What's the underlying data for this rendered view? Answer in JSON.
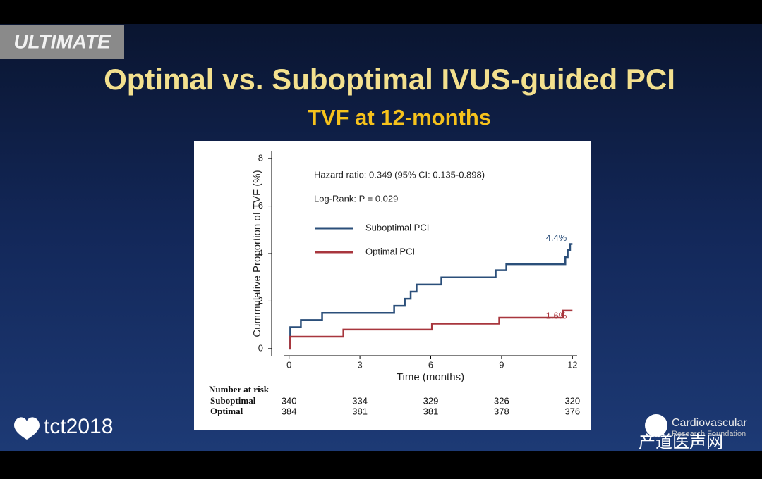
{
  "badge": "ULTIMATE",
  "title": "Optimal vs. Suboptimal IVUS-guided PCI",
  "subtitle": "TVF at 12-months",
  "chart_data": {
    "type": "step",
    "xlabel": "Time (months)",
    "ylabel": "Cummulative Proportion of TVF (%)",
    "xlim": [
      -0.2,
      12.2
    ],
    "ylim": [
      -0.3,
      8.3
    ],
    "xticks": [
      0,
      3,
      6,
      9,
      12
    ],
    "yticks": [
      0,
      2,
      4,
      6,
      8
    ],
    "annotations": [
      "Hazard ratio: 0.349 (95% CI: 0.135-0.898)",
      "Log-Rank: P = 0.029"
    ],
    "series": [
      {
        "name": "Suboptimal PCI",
        "color": "#2b4f7a",
        "end_label": "4.4%",
        "x": [
          0,
          0.05,
          0.05,
          0.5,
          0.5,
          1.4,
          1.4,
          4.45,
          4.45,
          4.9,
          4.9,
          5.15,
          5.15,
          5.4,
          5.4,
          6.45,
          6.45,
          8.75,
          8.75,
          9.2,
          9.2,
          11.7,
          11.7,
          11.8,
          11.8,
          11.9,
          11.9,
          12
        ],
        "values": [
          0,
          0,
          0.9,
          0.9,
          1.2,
          1.2,
          1.5,
          1.5,
          1.8,
          1.8,
          2.1,
          2.1,
          2.4,
          2.4,
          2.7,
          2.7,
          3.0,
          3.0,
          3.3,
          3.3,
          3.55,
          3.55,
          3.85,
          3.85,
          4.15,
          4.15,
          4.4,
          4.4
        ]
      },
      {
        "name": "Optimal PCI",
        "color": "#a8363d",
        "end_label": "1.6%",
        "x": [
          0,
          0.05,
          0.05,
          2.3,
          2.3,
          6.05,
          6.05,
          8.9,
          8.9,
          11.6,
          11.6,
          12
        ],
        "values": [
          0,
          0,
          0.5,
          0.5,
          0.8,
          0.8,
          1.05,
          1.05,
          1.3,
          1.3,
          1.6,
          1.6
        ]
      }
    ],
    "risk_table": {
      "title": "Number at risk",
      "rows": [
        {
          "name": "Suboptimal",
          "values": [
            340,
            334,
            329,
            326,
            320
          ]
        },
        {
          "name": "Optimal",
          "values": [
            384,
            381,
            381,
            378,
            376
          ]
        }
      ]
    }
  },
  "footer": {
    "logo": "tct2018",
    "sponsor_line1": "Cardiovascular",
    "sponsor_line2": "Research Foundation",
    "watermark": "产道医声网"
  }
}
